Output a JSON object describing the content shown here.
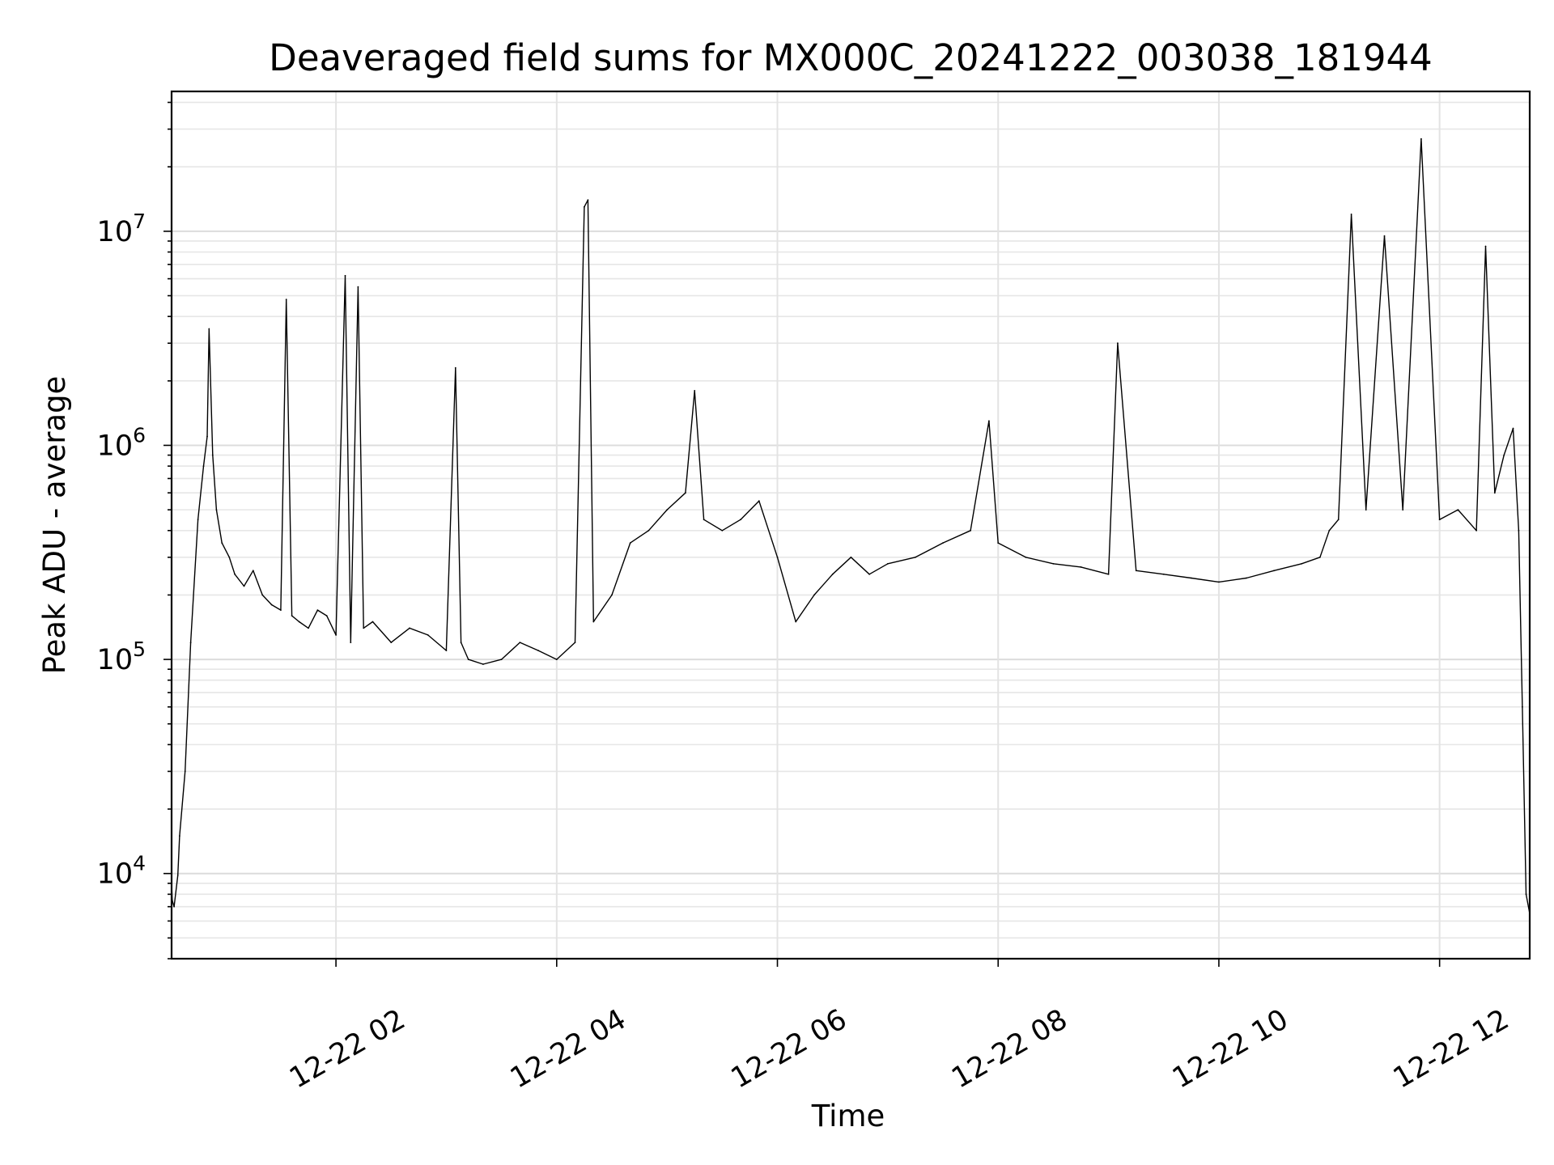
{
  "chart_data": {
    "type": "line",
    "title": "Deaveraged field sums for MX000C_20241222_003038_181944",
    "xlabel": "Time",
    "ylabel": "Peak ADU - average",
    "yscale": "log",
    "xlim": [
      "2024-12-22 00:30:38",
      "2024-12-22 12:49:00"
    ],
    "ylim": [
      4000,
      45000000
    ],
    "grid": true,
    "line_color": "#000000",
    "x_ticks": [
      {
        "t": "2024-12-22 02:00",
        "label": "12-22 02"
      },
      {
        "t": "2024-12-22 04:00",
        "label": "12-22 04"
      },
      {
        "t": "2024-12-22 06:00",
        "label": "12-22 06"
      },
      {
        "t": "2024-12-22 08:00",
        "label": "12-22 08"
      },
      {
        "t": "2024-12-22 10:00",
        "label": "12-22 10"
      },
      {
        "t": "2024-12-22 12:00",
        "label": "12-22 12"
      }
    ],
    "y_ticks": [
      {
        "value": 10000,
        "base": "10",
        "exp": "4"
      },
      {
        "value": 100000,
        "base": "10",
        "exp": "5"
      },
      {
        "value": 1000000,
        "base": "10",
        "exp": "6"
      },
      {
        "value": 10000000,
        "base": "10",
        "exp": "7"
      }
    ],
    "series": [
      {
        "x": [
          "2024-12-22 00:30:38",
          "2024-12-22 00:31",
          "2024-12-22 00:32",
          "2024-12-22 00:34",
          "2024-12-22 00:35",
          "2024-12-22 00:38",
          "2024-12-22 00:41",
          "2024-12-22 00:45",
          "2024-12-22 00:48",
          "2024-12-22 00:50",
          "2024-12-22 00:51",
          "2024-12-22 00:53",
          "2024-12-22 00:55",
          "2024-12-22 00:58",
          "2024-12-22 01:02",
          "2024-12-22 01:05",
          "2024-12-22 01:10",
          "2024-12-22 01:15",
          "2024-12-22 01:20",
          "2024-12-22 01:25",
          "2024-12-22 01:30",
          "2024-12-22 01:33",
          "2024-12-22 01:36",
          "2024-12-22 01:40",
          "2024-12-22 01:45",
          "2024-12-22 01:50",
          "2024-12-22 01:55",
          "2024-12-22 02:00",
          "2024-12-22 02:05",
          "2024-12-22 02:08",
          "2024-12-22 02:12",
          "2024-12-22 02:15",
          "2024-12-22 02:20",
          "2024-12-22 02:30",
          "2024-12-22 02:40",
          "2024-12-22 02:50",
          "2024-12-22 03:00",
          "2024-12-22 03:05",
          "2024-12-22 03:08",
          "2024-12-22 03:12",
          "2024-12-22 03:20",
          "2024-12-22 03:30",
          "2024-12-22 03:40",
          "2024-12-22 03:50",
          "2024-12-22 04:00",
          "2024-12-22 04:10",
          "2024-12-22 04:15",
          "2024-12-22 04:17",
          "2024-12-22 04:20",
          "2024-12-22 04:30",
          "2024-12-22 04:40",
          "2024-12-22 04:50",
          "2024-12-22 05:00",
          "2024-12-22 05:10",
          "2024-12-22 05:15",
          "2024-12-22 05:20",
          "2024-12-22 05:30",
          "2024-12-22 05:40",
          "2024-12-22 05:50",
          "2024-12-22 06:00",
          "2024-12-22 06:10",
          "2024-12-22 06:20",
          "2024-12-22 06:30",
          "2024-12-22 06:40",
          "2024-12-22 06:50",
          "2024-12-22 07:00",
          "2024-12-22 07:15",
          "2024-12-22 07:30",
          "2024-12-22 07:45",
          "2024-12-22 07:55",
          "2024-12-22 08:00",
          "2024-12-22 08:15",
          "2024-12-22 08:30",
          "2024-12-22 08:45",
          "2024-12-22 09:00",
          "2024-12-22 09:05",
          "2024-12-22 09:15",
          "2024-12-22 09:30",
          "2024-12-22 09:45",
          "2024-12-22 10:00",
          "2024-12-22 10:15",
          "2024-12-22 10:30",
          "2024-12-22 10:45",
          "2024-12-22 10:55",
          "2024-12-22 11:00",
          "2024-12-22 11:05",
          "2024-12-22 11:12",
          "2024-12-22 11:20",
          "2024-12-22 11:30",
          "2024-12-22 11:40",
          "2024-12-22 11:50",
          "2024-12-22 12:00",
          "2024-12-22 12:10",
          "2024-12-22 12:20",
          "2024-12-22 12:25",
          "2024-12-22 12:30",
          "2024-12-22 12:35",
          "2024-12-22 12:40",
          "2024-12-22 12:43",
          "2024-12-22 12:45",
          "2024-12-22 12:47",
          "2024-12-22 12:49"
        ],
        "y": [
          9000,
          7500,
          7000,
          9800,
          15000,
          30000,
          120000,
          450000,
          800000,
          1100000,
          3500000,
          900000,
          500000,
          350000,
          300000,
          250000,
          220000,
          260000,
          200000,
          180000,
          170000,
          4800000,
          160000,
          150000,
          140000,
          170000,
          160000,
          130000,
          6200000,
          120000,
          5500000,
          140000,
          150000,
          120000,
          140000,
          130000,
          110000,
          2300000,
          120000,
          100000,
          95000,
          100000,
          120000,
          110000,
          100000,
          120000,
          13000000,
          14000000,
          150000,
          200000,
          350000,
          400000,
          500000,
          600000,
          1800000,
          450000,
          400000,
          450000,
          550000,
          300000,
          150000,
          200000,
          250000,
          300000,
          250000,
          280000,
          300000,
          350000,
          400000,
          1300000,
          350000,
          300000,
          280000,
          270000,
          250000,
          3000000,
          260000,
          250000,
          240000,
          230000,
          240000,
          260000,
          280000,
          300000,
          400000,
          450000,
          12000000,
          500000,
          9500000,
          500000,
          27000000,
          450000,
          500000,
          400000,
          8500000,
          600000,
          900000,
          1200000,
          400000,
          60000,
          8000,
          6500
        ]
      }
    ]
  }
}
